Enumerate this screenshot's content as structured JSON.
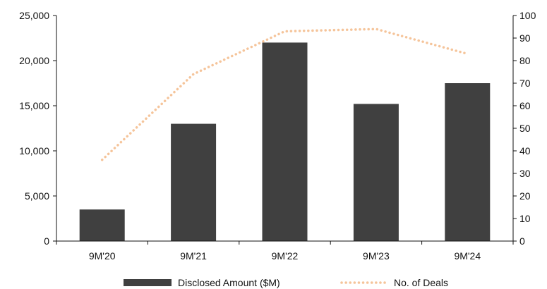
{
  "chart_data": {
    "type": "bar",
    "categories": [
      "9M'20",
      "9M'21",
      "9M'22",
      "9M'23",
      "9M'24"
    ],
    "series": [
      {
        "name": "Disclosed Amount ($M)",
        "type": "bar",
        "axis": "left",
        "color": "#404040",
        "values": [
          3500,
          13000,
          22000,
          15200,
          17500
        ]
      },
      {
        "name": "No. of Deals",
        "type": "line",
        "style": "dotted",
        "axis": "right",
        "color": "#F5C49A",
        "values": [
          36,
          74,
          93,
          94,
          83
        ]
      }
    ],
    "y_left": {
      "range": [
        0,
        25000
      ],
      "ticks": [
        0,
        5000,
        10000,
        15000,
        20000,
        25000
      ],
      "tick_labels": [
        "0",
        "5,000",
        "10,000",
        "15,000",
        "20,000",
        "25,000"
      ]
    },
    "y_right": {
      "range": [
        0,
        100
      ],
      "ticks": [
        0,
        10,
        20,
        30,
        40,
        50,
        60,
        70,
        80,
        90,
        100
      ],
      "tick_labels": [
        "0",
        "10",
        "20",
        "30",
        "40",
        "50",
        "60",
        "70",
        "80",
        "90",
        "100"
      ]
    },
    "grid": false,
    "legend": "bottom",
    "title": "",
    "xlabel": "",
    "ylabel": ""
  }
}
